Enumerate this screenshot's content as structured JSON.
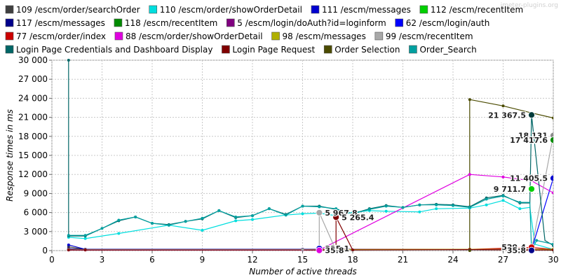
{
  "watermark": "jmeter-plugins.org",
  "chart_data": {
    "type": "line",
    "xlabel": "Number of active threads",
    "ylabel": "Response times in ms",
    "xlim": [
      0,
      30
    ],
    "ylim": [
      0,
      30000
    ],
    "x_ticks": [
      "0",
      "3",
      "6",
      "9",
      "12",
      "15",
      "18",
      "21",
      "24",
      "27",
      "30"
    ],
    "y_ticks": [
      "0",
      "3 000",
      "6 000",
      "9 000",
      "12 000",
      "15 000",
      "18 000",
      "21 000",
      "24 000",
      "27 000",
      "30 000"
    ],
    "grid": true,
    "legend_placement": "top",
    "series": [
      {
        "name": "109 /escm/order/searchOrder",
        "color": "#3f3f3f",
        "points": [
          [
            1,
            600
          ],
          [
            2,
            200
          ],
          [
            15,
            200
          ],
          [
            25,
            200
          ],
          [
            28.7,
            200
          ],
          [
            30,
            150
          ]
        ]
      },
      {
        "name": "110 /escm/order/showOrderDetail",
        "color": "#00dede",
        "points": [
          [
            1,
            2100
          ],
          [
            2,
            1900
          ],
          [
            4,
            2700
          ],
          [
            7,
            4000
          ],
          [
            9,
            3200
          ],
          [
            11,
            4700
          ],
          [
            12,
            4900
          ],
          [
            14,
            5600
          ],
          [
            15,
            5800
          ],
          [
            16,
            5900
          ],
          [
            17,
            5500
          ],
          [
            18,
            6000
          ],
          [
            19,
            6300
          ],
          [
            20,
            6200
          ],
          [
            22,
            6100
          ],
          [
            23,
            6600
          ],
          [
            25,
            6700
          ],
          [
            26,
            7200
          ],
          [
            27,
            7900
          ],
          [
            28,
            6600
          ],
          [
            28.6,
            6800
          ],
          [
            28.9,
            1000
          ],
          [
            30,
            200
          ]
        ]
      },
      {
        "name": "111 /escm/messages",
        "color": "#0000d0",
        "points": [
          [
            1,
            900
          ],
          [
            2,
            200
          ],
          [
            15,
            200
          ],
          [
            25,
            200
          ],
          [
            28.7,
            150
          ]
        ]
      },
      {
        "name": "112 /escm/recentItem",
        "color": "#00d000",
        "points": [
          [
            1,
            150
          ],
          [
            2,
            150
          ],
          [
            15,
            150
          ],
          [
            25,
            150
          ],
          [
            28.7,
            150
          ],
          [
            30,
            100
          ]
        ]
      },
      {
        "name": "117 /escm/messages",
        "color": "#00008b",
        "points": [
          [
            1,
            300
          ],
          [
            2,
            200
          ],
          [
            15,
            200
          ],
          [
            25,
            200
          ],
          [
            28.7,
            200
          ],
          [
            30,
            150
          ]
        ]
      },
      {
        "name": "118 /escm/recentItem",
        "color": "#008b00",
        "points": [
          [
            1,
            200
          ],
          [
            2,
            150
          ],
          [
            15,
            150
          ],
          [
            25,
            150
          ],
          [
            28.7,
            150
          ],
          [
            30,
            100
          ]
        ]
      },
      {
        "name": "5 /escm/login/doAuth?id=loginform",
        "color": "#800080",
        "points": [
          [
            1,
            200
          ],
          [
            2,
            150
          ],
          [
            15,
            150
          ],
          [
            25,
            200
          ],
          [
            28.7,
            200
          ],
          [
            30,
            150
          ]
        ]
      },
      {
        "name": "62 /escm/login/auth",
        "color": "#0000ff",
        "points": [
          [
            1,
            150
          ],
          [
            2,
            150
          ],
          [
            15,
            150
          ],
          [
            16,
            150
          ],
          [
            25,
            150
          ],
          [
            28.7,
            150
          ],
          [
            30,
            11405.5
          ],
          [
            31,
            0
          ]
        ]
      },
      {
        "name": "77 /escm/order/index",
        "color": "#cc0000",
        "points": [
          [
            1,
            150
          ],
          [
            2,
            150
          ],
          [
            15,
            150
          ],
          [
            25,
            200
          ],
          [
            28.7,
            500
          ],
          [
            30,
            200
          ],
          [
            31,
            200
          ]
        ]
      },
      {
        "name": "88 /escm/order/showOrderDetail",
        "color": "#e000e0",
        "points": [
          [
            1,
            100
          ],
          [
            2,
            100
          ],
          [
            15,
            100
          ],
          [
            16,
            100
          ],
          [
            25,
            12000
          ],
          [
            27,
            11600
          ],
          [
            28.7,
            11000
          ],
          [
            30,
            9100
          ],
          [
            31,
            0
          ]
        ]
      },
      {
        "name": "98 /escm/messages",
        "color": "#b0b000",
        "points": [
          [
            1,
            150
          ],
          [
            2,
            150
          ],
          [
            15,
            150
          ],
          [
            25,
            200
          ],
          [
            28.7,
            200
          ],
          [
            30,
            200
          ]
        ]
      },
      {
        "name": "99 /escm/recentItem",
        "color": "#a8a8a8",
        "points": [
          [
            1,
            150
          ],
          [
            2,
            150
          ],
          [
            15,
            150
          ],
          [
            16,
            150
          ],
          [
            16,
            5967.8
          ],
          [
            17,
            0
          ],
          [
            25,
            150
          ],
          [
            28.7,
            150
          ],
          [
            30,
            18131
          ],
          [
            31,
            0
          ]
        ]
      },
      {
        "name": "Login Page Credentials and Dashboard Display",
        "color": "#006666",
        "points": [
          [
            1,
            30000
          ],
          [
            1,
            2300
          ],
          [
            2,
            2300
          ],
          [
            4,
            4700
          ],
          [
            5,
            5300
          ],
          [
            6,
            4300
          ],
          [
            7,
            4100
          ],
          [
            8,
            4600
          ],
          [
            9,
            5000
          ],
          [
            10,
            6300
          ],
          [
            11,
            5200
          ],
          [
            12,
            5500
          ],
          [
            13,
            6600
          ],
          [
            14,
            5700
          ],
          [
            15,
            7000
          ],
          [
            16,
            7000
          ],
          [
            17,
            6500
          ],
          [
            18,
            5800
          ],
          [
            19,
            6600
          ],
          [
            20,
            7100
          ],
          [
            21,
            6800
          ],
          [
            22,
            7200
          ],
          [
            23,
            7300
          ],
          [
            24,
            7200
          ],
          [
            25,
            6900
          ],
          [
            26,
            8300
          ],
          [
            27,
            8700
          ],
          [
            28,
            7500
          ],
          [
            28.6,
            7500
          ],
          [
            28.7,
            21367.5
          ],
          [
            29.5,
            1600
          ],
          [
            30,
            800
          ],
          [
            31,
            0
          ]
        ]
      },
      {
        "name": "Login Page Request",
        "color": "#800000",
        "points": [
          [
            1,
            100
          ],
          [
            2,
            100
          ],
          [
            16,
            100
          ],
          [
            17,
            100
          ],
          [
            17,
            5265.4
          ],
          [
            18,
            100
          ],
          [
            25,
            150
          ],
          [
            28.7,
            100
          ],
          [
            30,
            100
          ]
        ]
      },
      {
        "name": "Order Selection",
        "color": "#4b4b00",
        "points": [
          [
            25,
            0
          ],
          [
            25,
            23800
          ],
          [
            27,
            22800
          ],
          [
            28.7,
            21700
          ],
          [
            30,
            20900
          ],
          [
            31,
            0
          ]
        ]
      },
      {
        "name": "Order_Search",
        "color": "#00a0a0",
        "points": [
          [
            1,
            2400
          ],
          [
            2,
            2400
          ],
          [
            3,
            3500
          ],
          [
            4,
            4800
          ],
          [
            5,
            5300
          ],
          [
            6,
            4300
          ],
          [
            7,
            4000
          ],
          [
            8,
            4600
          ],
          [
            9,
            5100
          ],
          [
            10,
            6300
          ],
          [
            11,
            5300
          ],
          [
            12,
            5500
          ],
          [
            13,
            6600
          ],
          [
            14,
            5600
          ],
          [
            15,
            7000
          ],
          [
            16,
            6900
          ],
          [
            17,
            6600
          ],
          [
            18,
            5800
          ],
          [
            19,
            6500
          ],
          [
            20,
            7000
          ],
          [
            21,
            6800
          ],
          [
            22,
            7200
          ],
          [
            23,
            7200
          ],
          [
            24,
            7100
          ],
          [
            25,
            6800
          ],
          [
            26,
            8100
          ],
          [
            27,
            8600
          ],
          [
            28,
            7600
          ],
          [
            28.6,
            7600
          ],
          [
            28.7,
            0
          ],
          [
            29,
            1600
          ],
          [
            30,
            1000
          ],
          [
            31,
            0
          ]
        ]
      }
    ],
    "markers": [
      {
        "x": 28.7,
        "y": 21367.5,
        "color": "#003b3b"
      },
      {
        "x": 30,
        "y": 18131,
        "color": "#8c8c8c"
      },
      {
        "x": 30,
        "y": 17417.6,
        "color": "#008b00"
      },
      {
        "x": 30,
        "y": 11405.5,
        "color": "#0000d0"
      },
      {
        "x": 28.7,
        "y": 9711.7,
        "color": "#00d000"
      },
      {
        "x": 16,
        "y": 5967.8,
        "color": "#a8a8a8"
      },
      {
        "x": 17,
        "y": 5265.4,
        "color": "#800000"
      },
      {
        "x": 16,
        "y": 325.1,
        "color": "#0000d0"
      },
      {
        "x": 16,
        "y": 35.8,
        "color": "#e000e0"
      },
      {
        "x": 28.7,
        "y": 529.4,
        "color": "#cc0000"
      },
      {
        "x": 28.7,
        "y": 35.8,
        "color": "#00008b"
      }
    ],
    "data_labels": [
      {
        "text": "21 367.5",
        "x": 28.7,
        "y": 21367.5
      },
      {
        "text": "18 131",
        "x": 30,
        "y": 18131
      },
      {
        "text": "17 417.6",
        "x": 30,
        "y": 17417.6
      },
      {
        "text": "11 405.5",
        "x": 30,
        "y": 11405.5
      },
      {
        "text": "9 711.7",
        "x": 28.7,
        "y": 9711.7
      },
      {
        "text": "5 967.8",
        "x": 16,
        "y": 5967.8
      },
      {
        "text": "5 265.4",
        "x": 17,
        "y": 5265.4
      },
      {
        "text": "325.1",
        "x": 16,
        "y": 325.1
      },
      {
        "text": "35.8",
        "x": 16,
        "y": 35.8
      },
      {
        "text": "529.4",
        "x": 28.7,
        "y": 529.4
      },
      {
        "text": "35.8",
        "x": 28.7,
        "y": 35.8
      }
    ]
  }
}
